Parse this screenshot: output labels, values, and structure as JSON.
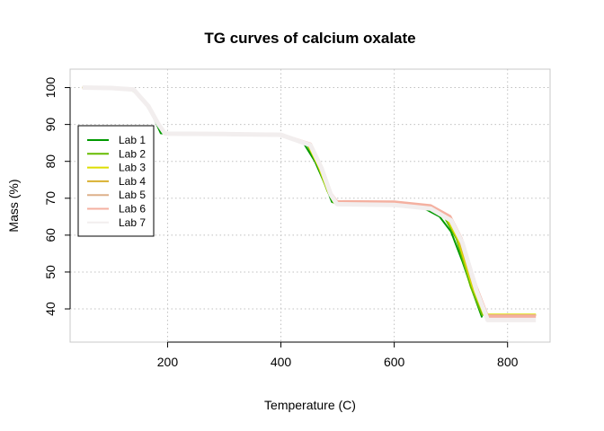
{
  "chart_data": {
    "type": "line",
    "title": "TG curves of calcium oxalate",
    "xlabel": "Temperature (C)",
    "ylabel": "Mass (%)",
    "xlim": [
      28,
      875
    ],
    "ylim": [
      31,
      105
    ],
    "xticks": [
      200,
      400,
      600,
      800
    ],
    "yticks": [
      40,
      50,
      60,
      70,
      80,
      90,
      100
    ],
    "grid": true,
    "legend_position": "left",
    "series": [
      {
        "name": "Lab 1",
        "color": "#009900",
        "points": [
          [
            50,
            100
          ],
          [
            100,
            99.9
          ],
          [
            140,
            99.2
          ],
          [
            160,
            96
          ],
          [
            175,
            92
          ],
          [
            188,
            87.6
          ],
          [
            200,
            87.5
          ],
          [
            300,
            87.3
          ],
          [
            400,
            87.0
          ],
          [
            440,
            85
          ],
          [
            460,
            80
          ],
          [
            480,
            73
          ],
          [
            490,
            69
          ],
          [
            500,
            68.5
          ],
          [
            600,
            68.4
          ],
          [
            650,
            67.5
          ],
          [
            680,
            65
          ],
          [
            700,
            61
          ],
          [
            720,
            53
          ],
          [
            740,
            44
          ],
          [
            755,
            37.7
          ]
        ]
      },
      {
        "name": "Lab 2",
        "color": "#66bb00",
        "points": [
          [
            50,
            100
          ],
          [
            100,
            99.9
          ],
          [
            135,
            99.6
          ],
          [
            160,
            96.5
          ],
          [
            180,
            91
          ],
          [
            192,
            87.6
          ],
          [
            200,
            87.5
          ],
          [
            300,
            87.3
          ],
          [
            400,
            87.0
          ],
          [
            445,
            85
          ],
          [
            465,
            79
          ],
          [
            482,
            72
          ],
          [
            493,
            68.8
          ],
          [
            500,
            68.5
          ],
          [
            600,
            68.4
          ],
          [
            660,
            67.4
          ],
          [
            690,
            64.5
          ],
          [
            710,
            59
          ],
          [
            735,
            46
          ],
          [
            755,
            38.4
          ],
          [
            850,
            38.4
          ]
        ]
      },
      {
        "name": "Lab 3",
        "color": "#dddd00",
        "points": [
          [
            50,
            100
          ],
          [
            100,
            99.9
          ],
          [
            140,
            99.5
          ],
          [
            165,
            95
          ],
          [
            182,
            90
          ],
          [
            193,
            87.6
          ],
          [
            200,
            87.5
          ],
          [
            300,
            87.3
          ],
          [
            400,
            87.0
          ],
          [
            448,
            84.5
          ],
          [
            468,
            78
          ],
          [
            484,
            71.5
          ],
          [
            495,
            68.8
          ],
          [
            500,
            68.6
          ],
          [
            600,
            68.5
          ],
          [
            660,
            67.6
          ],
          [
            692,
            64.8
          ],
          [
            712,
            59
          ],
          [
            738,
            46
          ],
          [
            758,
            38.5
          ],
          [
            850,
            38.5
          ]
        ]
      },
      {
        "name": "Lab 4",
        "color": "#d9b030",
        "points": [
          [
            50,
            100
          ],
          [
            100,
            99.9
          ],
          [
            140,
            99.5
          ],
          [
            166,
            95
          ],
          [
            183,
            90
          ],
          [
            194,
            87.6
          ],
          [
            200,
            87.5
          ],
          [
            300,
            87.3
          ],
          [
            400,
            87.1
          ],
          [
            450,
            84.5
          ],
          [
            470,
            78
          ],
          [
            486,
            71
          ],
          [
            496,
            68.9
          ],
          [
            500,
            68.7
          ],
          [
            600,
            68.6
          ],
          [
            662,
            67.7
          ],
          [
            694,
            65
          ],
          [
            714,
            59
          ],
          [
            740,
            46
          ],
          [
            760,
            38.3
          ],
          [
            850,
            38.3
          ]
        ]
      },
      {
        "name": "Lab 5",
        "color": "#ddb08a",
        "points": [
          [
            50,
            100
          ],
          [
            100,
            99.9
          ],
          [
            140,
            99.5
          ],
          [
            166,
            95
          ],
          [
            184,
            90
          ],
          [
            195,
            87.6
          ],
          [
            200,
            87.5
          ],
          [
            300,
            87.4
          ],
          [
            400,
            87.2
          ],
          [
            452,
            84.5
          ],
          [
            472,
            78
          ],
          [
            488,
            71
          ],
          [
            498,
            69
          ],
          [
            500,
            68.9
          ],
          [
            600,
            68.8
          ],
          [
            664,
            67.8
          ],
          [
            696,
            65
          ],
          [
            716,
            59
          ],
          [
            742,
            46
          ],
          [
            762,
            38.2
          ],
          [
            850,
            38.2
          ]
        ]
      },
      {
        "name": "Lab 6",
        "color": "#f4b0a0",
        "points": [
          [
            50,
            100
          ],
          [
            100,
            99.9
          ],
          [
            140,
            99.5
          ],
          [
            166,
            95
          ],
          [
            184,
            90
          ],
          [
            195,
            87.6
          ],
          [
            200,
            87.5
          ],
          [
            300,
            87.4
          ],
          [
            400,
            87.2
          ],
          [
            452,
            84.6
          ],
          [
            472,
            78.2
          ],
          [
            488,
            71.2
          ],
          [
            498,
            69.1
          ],
          [
            500,
            69
          ],
          [
            600,
            68.9
          ],
          [
            664,
            67.9
          ],
          [
            698,
            65
          ],
          [
            718,
            59
          ],
          [
            744,
            46
          ],
          [
            764,
            38
          ],
          [
            850,
            38
          ]
        ]
      },
      {
        "name": "Lab 7",
        "color": "#f2eeee",
        "points": [
          [
            50,
            100
          ],
          [
            100,
            99.9
          ],
          [
            140,
            99.5
          ],
          [
            166,
            95
          ],
          [
            184,
            90
          ],
          [
            195,
            87.6
          ],
          [
            200,
            87.5
          ],
          [
            300,
            87.4
          ],
          [
            400,
            87.2
          ],
          [
            452,
            84.4
          ],
          [
            472,
            78
          ],
          [
            488,
            71
          ],
          [
            498,
            68.6
          ],
          [
            500,
            68.4
          ],
          [
            600,
            68.2
          ],
          [
            664,
            67.2
          ],
          [
            700,
            64
          ],
          [
            720,
            58
          ],
          [
            745,
            45
          ],
          [
            765,
            37
          ],
          [
            850,
            37
          ]
        ]
      }
    ]
  }
}
